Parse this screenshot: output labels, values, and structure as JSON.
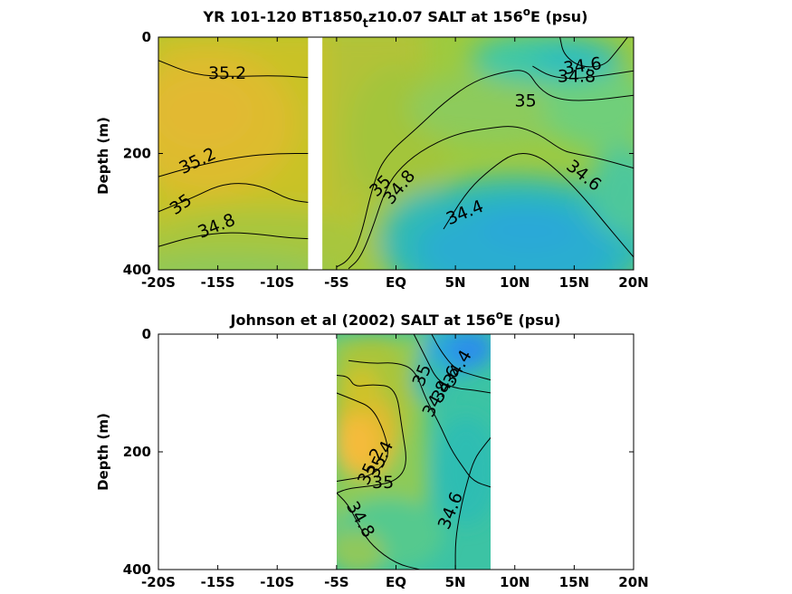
{
  "chart_data": [
    {
      "type": "heatmap",
      "title_parts": [
        "YR 101-120 BT1850",
        "t",
        "z10.07 SALT at 156",
        "o",
        "E (psu)"
      ],
      "ylabel": "Depth (m)",
      "x_ticks": [
        "-20S",
        "-15S",
        "-10S",
        "-5S",
        "EQ",
        "5N",
        "10N",
        "15N",
        "20N"
      ],
      "x_tick_values": [
        -20,
        -15,
        -10,
        -5,
        0,
        5,
        10,
        15,
        20
      ],
      "y_ticks": [
        "0",
        "200",
        "400"
      ],
      "y_tick_values": [
        0,
        200,
        400
      ],
      "xlim": [
        -20,
        20
      ],
      "ylim": [
        0,
        400
      ],
      "y_reversed": true,
      "colormap": "parula",
      "color_range": [
        34.0,
        35.6
      ],
      "masked_x_range": [
        -7.4,
        -6.2
      ],
      "data_x_range": [
        -20,
        20
      ],
      "contour_labels": [
        {
          "text": "35.2",
          "x": -14.2,
          "y": 62
        },
        {
          "text": "35.2",
          "x": -16.7,
          "y": 213,
          "angle": -26
        },
        {
          "text": "35",
          "x": -18.1,
          "y": 288,
          "angle": -35
        },
        {
          "text": "34.8",
          "x": -15.1,
          "y": 325,
          "angle": -22
        },
        {
          "text": "35",
          "x": -1.3,
          "y": 256,
          "angle": -45
        },
        {
          "text": "34.8",
          "x": 0.3,
          "y": 258,
          "angle": -50
        },
        {
          "text": "34.4",
          "x": 5.8,
          "y": 302,
          "angle": -22
        },
        {
          "text": "34.6",
          "x": 15.7,
          "y": 50,
          "angle": -8
        },
        {
          "text": "34.8",
          "x": 15.2,
          "y": 68
        },
        {
          "text": "35",
          "x": 10.9,
          "y": 110
        },
        {
          "text": "34.6",
          "x": 15.8,
          "y": 238,
          "angle": 38
        }
      ],
      "contour_lines": [
        {
          "level": 35.2,
          "points": [
            [
              -20,
              40
            ],
            [
              -17,
              65
            ],
            [
              -14,
              68
            ],
            [
              -10,
              66
            ],
            [
              -7,
              70
            ]
          ]
        },
        {
          "level": 35.2,
          "points": [
            [
              -20,
              240
            ],
            [
              -17,
              222
            ],
            [
              -13,
              205
            ],
            [
              -10,
              200
            ],
            [
              -7,
              200
            ]
          ]
        },
        {
          "level": 35,
          "points": [
            [
              -20,
              300
            ],
            [
              -17,
              275
            ],
            [
              -15,
              255
            ],
            [
              -13,
              250
            ],
            [
              -11,
              258
            ],
            [
              -9,
              280
            ],
            [
              -7,
              285
            ]
          ]
        },
        {
          "level": 34.8,
          "points": [
            [
              -20,
              360
            ],
            [
              -17,
              342
            ],
            [
              -14,
              335
            ],
            [
              -11,
              340
            ],
            [
              -9,
              345
            ],
            [
              -7,
              347
            ]
          ]
        },
        {
          "level": 35,
          "points": [
            [
              -5,
              395
            ],
            [
              -4,
              384
            ],
            [
              -3,
              347
            ],
            [
              -2,
              258
            ],
            [
              -1,
              206
            ],
            [
              2,
              152
            ],
            [
              4,
              113
            ],
            [
              6.5,
              76
            ],
            [
              9,
              60
            ],
            [
              11,
              55
            ],
            [
              12,
              88
            ],
            [
              13.5,
              107
            ],
            [
              16,
              110
            ],
            [
              20,
              100
            ]
          ]
        },
        {
          "level": 34.8,
          "points": [
            [
              -4,
              398
            ],
            [
              -3,
              380
            ],
            [
              -2,
              330
            ],
            [
              -1,
              268
            ],
            [
              0,
              232
            ],
            [
              2,
              196
            ],
            [
              5,
              166
            ],
            [
              8,
              156
            ],
            [
              10,
              152
            ],
            [
              12,
              166
            ],
            [
              14,
              195
            ],
            [
              15,
              200
            ],
            [
              17,
              208
            ],
            [
              20,
              225
            ]
          ]
        },
        {
          "level": 34.6,
          "points": [
            [
              4,
              330
            ],
            [
              6,
              264
            ],
            [
              8,
              226
            ],
            [
              10,
              198
            ],
            [
              12,
              203
            ],
            [
              14,
              237
            ],
            [
              16,
              280
            ],
            [
              18,
              330
            ],
            [
              20,
              378
            ]
          ]
        },
        {
          "level": 34.8,
          "points": [
            [
              11.5,
              50
            ],
            [
              13,
              68
            ],
            [
              15,
              72
            ],
            [
              17.5,
              66
            ],
            [
              20,
              58
            ]
          ]
        },
        {
          "level": 34.6,
          "points": [
            [
              13.8,
              0
            ],
            [
              14.1,
              30
            ],
            [
              15.5,
              52
            ],
            [
              17.5,
              50
            ],
            [
              18.5,
              26
            ],
            [
              19.5,
              0
            ]
          ]
        }
      ]
    },
    {
      "type": "heatmap",
      "title_parts": [
        "Johnson et al (2002) SALT at 156",
        "o",
        "E (psu)"
      ],
      "ylabel": "Depth (m)",
      "x_ticks": [
        "-20S",
        "-15S",
        "-10S",
        "-5S",
        "EQ",
        "5N",
        "10N",
        "15N",
        "20N"
      ],
      "x_tick_values": [
        -20,
        -15,
        -10,
        -5,
        0,
        5,
        10,
        15,
        20
      ],
      "y_ticks": [
        "0",
        "200",
        "400"
      ],
      "y_tick_values": [
        0,
        200,
        400
      ],
      "xlim": [
        -20,
        20
      ],
      "ylim": [
        0,
        400
      ],
      "y_reversed": true,
      "colormap": "parula",
      "color_range": [
        34.0,
        35.6
      ],
      "data_x_range": [
        -5,
        8
      ],
      "contour_labels": [
        {
          "text": "34.4",
          "x": 5.2,
          "y": 58,
          "angle": -60
        },
        {
          "text": "34.6",
          "x": 4.2,
          "y": 85,
          "angle": -60
        },
        {
          "text": "34.8",
          "x": 3.4,
          "y": 110,
          "angle": -62
        },
        {
          "text": "35",
          "x": 2.2,
          "y": 70,
          "angle": -68
        },
        {
          "text": "35.4",
          "x": -1.3,
          "y": 213,
          "angle": -65
        },
        {
          "text": "35.2",
          "x": -2.1,
          "y": 225,
          "angle": -65
        },
        {
          "text": "35",
          "x": -1.1,
          "y": 252
        },
        {
          "text": "34.8",
          "x": -3.0,
          "y": 315,
          "angle": 60
        },
        {
          "text": "34.6",
          "x": 4.6,
          "y": 300,
          "angle": -68
        }
      ],
      "contour_lines": [
        {
          "level": 34.4,
          "points": [
            [
              3,
              0
            ],
            [
              3.8,
              30
            ],
            [
              5,
              60
            ],
            [
              6.5,
              70
            ],
            [
              8,
              78
            ]
          ]
        },
        {
          "level": 34.6,
          "points": [
            [
              1.5,
              0
            ],
            [
              2.5,
              40
            ],
            [
              3.5,
              80
            ],
            [
              5,
              92
            ],
            [
              6.5,
              95
            ],
            [
              8,
              100
            ]
          ]
        },
        {
          "level": 34.8,
          "points": [
            [
              -4,
              45
            ],
            [
              -2,
              50
            ],
            [
              0,
              48
            ],
            [
              1.6,
              60
            ],
            [
              2.5,
              110
            ],
            [
              3.6,
              150
            ],
            [
              4.6,
              195
            ],
            [
              5.6,
              225
            ],
            [
              6.5,
              250
            ],
            [
              8,
              260
            ]
          ]
        },
        {
          "level": 35.2,
          "points": [
            [
              -5,
              100
            ],
            [
              -3.5,
              112
            ],
            [
              -2,
              125
            ],
            [
              -1,
              165
            ],
            [
              -0.5,
              210
            ],
            [
              -2,
              240
            ],
            [
              -3.5,
              245
            ],
            [
              -5,
              250
            ]
          ]
        },
        {
          "level": 35,
          "points": [
            [
              -5,
              70
            ],
            [
              -4,
              72
            ],
            [
              -3.5,
              90
            ],
            [
              -2,
              85
            ],
            [
              0,
              90
            ],
            [
              0.5,
              160
            ],
            [
              1,
              222
            ],
            [
              0,
              250
            ],
            [
              -2,
              258
            ],
            [
              -4,
              262
            ],
            [
              -5,
              270
            ]
          ]
        },
        {
          "level": 34.8,
          "points": [
            [
              -5,
              270
            ],
            [
              -4,
              290
            ],
            [
              -3,
              330
            ],
            [
              -2,
              360
            ],
            [
              0,
              390
            ],
            [
              2,
              400
            ]
          ]
        },
        {
          "level": 34.6,
          "points": [
            [
              5,
              400
            ],
            [
              5,
              350
            ],
            [
              5.4,
              300
            ],
            [
              6,
              250
            ],
            [
              6.6,
              212
            ],
            [
              7.4,
              190
            ],
            [
              8,
              175
            ]
          ]
        }
      ]
    }
  ]
}
